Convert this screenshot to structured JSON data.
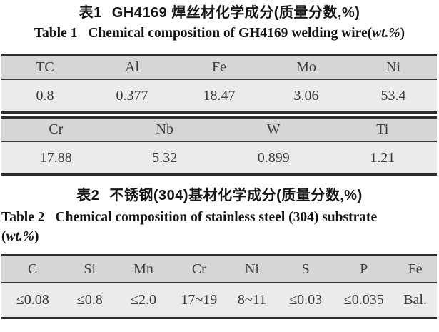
{
  "colors": {
    "header_row_bg": "#d6d6d6",
    "value_row_bg": "#ebebeb",
    "rule_color": "#2d2d2d",
    "text_color": "#3a3a3a"
  },
  "table1": {
    "caption_zh": {
      "label": "表1",
      "text": "GH4169 焊丝材化学成分(质量分数,%)"
    },
    "caption_en": {
      "label": "Table 1",
      "text": "Chemical composition of GH4169 welding wire",
      "paren_open": "(",
      "unit": "wt.%",
      "paren_close": ")"
    },
    "part1": {
      "headers": [
        "TC",
        "Al",
        "Fe",
        "Mo",
        "Ni"
      ],
      "values": [
        "0.8",
        "0.377",
        "18.47",
        "3.06",
        "53.4"
      ]
    },
    "part2": {
      "headers": [
        "Cr",
        "Nb",
        "W",
        "Ti"
      ],
      "values": [
        "17.88",
        "5.32",
        "0.899",
        "1.21"
      ]
    }
  },
  "table2": {
    "caption_zh": {
      "label": "表2",
      "text": "不锈钢(304)基材化学成分(质量分数,%)"
    },
    "caption_en": {
      "label": "Table 2",
      "text": "Chemical composition of stainless steel (304) substrate",
      "paren_open": "(",
      "unit": "wt.%",
      "paren_close": ")"
    },
    "headers": [
      "C",
      "Si",
      "Mn",
      "Cr",
      "Ni",
      "S",
      "P",
      "Fe"
    ],
    "values": [
      "≤0.08",
      "≤0.8",
      "≤2.0",
      "17~19",
      "8~11",
      "≤0.03",
      "≤0.035",
      "Bal."
    ]
  }
}
